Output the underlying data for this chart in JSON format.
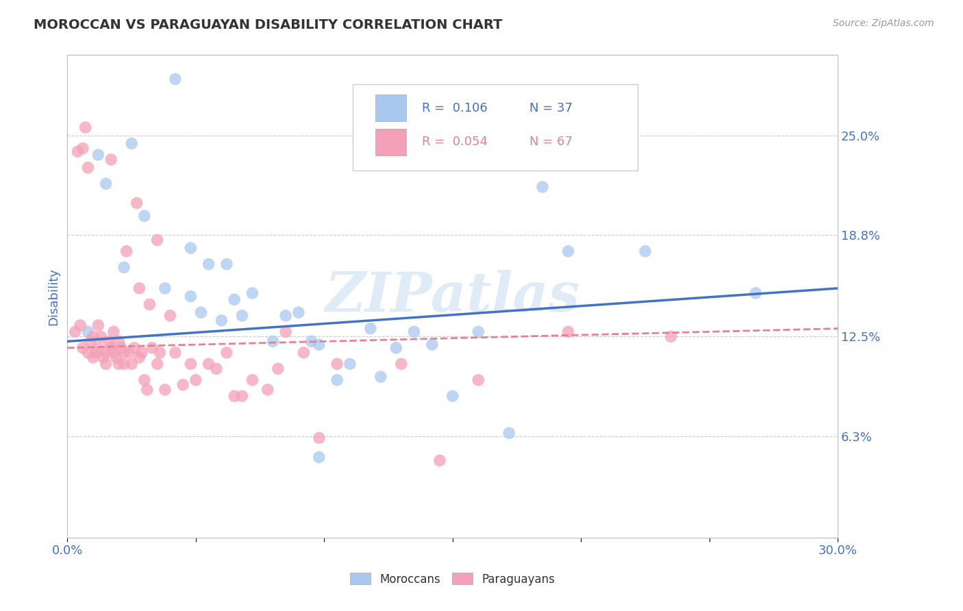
{
  "title": "MOROCCAN VS PARAGUAYAN DISABILITY CORRELATION CHART",
  "source": "Source: ZipAtlas.com",
  "ylabel": "Disability",
  "xlim": [
    0.0,
    0.3
  ],
  "ylim": [
    0.0,
    0.3
  ],
  "yticks": [
    0.063,
    0.125,
    0.188,
    0.25
  ],
  "ytick_labels": [
    "6.3%",
    "12.5%",
    "18.8%",
    "25.0%"
  ],
  "xtick_labels": [
    "0.0%",
    "30.0%"
  ],
  "watermark": "ZIPatlas",
  "legend_r_moroccan": "0.106",
  "legend_n_moroccan": "37",
  "legend_r_paraguayan": "0.054",
  "legend_n_paraguayan": "67",
  "moroccan_color": "#A8C8F0",
  "paraguayan_color": "#F4A0B8",
  "moroccan_line_color": "#4472C4",
  "paraguayan_line_color": "#E88090",
  "moroccan_x": [
    0.008,
    0.012,
    0.022,
    0.025,
    0.03,
    0.038,
    0.042,
    0.048,
    0.052,
    0.055,
    0.06,
    0.065,
    0.068,
    0.072,
    0.08,
    0.085,
    0.09,
    0.095,
    0.098,
    0.105,
    0.11,
    0.118,
    0.122,
    0.128,
    0.135,
    0.142,
    0.15,
    0.16,
    0.172,
    0.185,
    0.195,
    0.225,
    0.268,
    0.048,
    0.015,
    0.062,
    0.098
  ],
  "moroccan_y": [
    0.128,
    0.238,
    0.168,
    0.245,
    0.2,
    0.155,
    0.285,
    0.15,
    0.14,
    0.17,
    0.135,
    0.148,
    0.138,
    0.152,
    0.122,
    0.138,
    0.14,
    0.122,
    0.12,
    0.098,
    0.108,
    0.13,
    0.1,
    0.118,
    0.128,
    0.12,
    0.088,
    0.128,
    0.065,
    0.218,
    0.178,
    0.178,
    0.152,
    0.18,
    0.22,
    0.17,
    0.05
  ],
  "paraguayan_x": [
    0.003,
    0.004,
    0.005,
    0.006,
    0.006,
    0.007,
    0.008,
    0.008,
    0.009,
    0.01,
    0.01,
    0.011,
    0.012,
    0.012,
    0.013,
    0.014,
    0.015,
    0.015,
    0.016,
    0.017,
    0.017,
    0.018,
    0.018,
    0.019,
    0.02,
    0.02,
    0.021,
    0.022,
    0.022,
    0.023,
    0.024,
    0.025,
    0.026,
    0.027,
    0.028,
    0.028,
    0.029,
    0.03,
    0.031,
    0.032,
    0.033,
    0.035,
    0.035,
    0.036,
    0.038,
    0.04,
    0.042,
    0.045,
    0.048,
    0.05,
    0.055,
    0.058,
    0.062,
    0.065,
    0.068,
    0.072,
    0.078,
    0.082,
    0.085,
    0.092,
    0.098,
    0.105,
    0.13,
    0.145,
    0.16,
    0.195,
    0.235
  ],
  "paraguayan_y": [
    0.128,
    0.24,
    0.132,
    0.118,
    0.242,
    0.255,
    0.115,
    0.23,
    0.122,
    0.112,
    0.125,
    0.115,
    0.118,
    0.132,
    0.125,
    0.112,
    0.108,
    0.115,
    0.122,
    0.118,
    0.235,
    0.115,
    0.128,
    0.112,
    0.108,
    0.122,
    0.118,
    0.108,
    0.115,
    0.178,
    0.115,
    0.108,
    0.118,
    0.208,
    0.112,
    0.155,
    0.115,
    0.098,
    0.092,
    0.145,
    0.118,
    0.108,
    0.185,
    0.115,
    0.092,
    0.138,
    0.115,
    0.095,
    0.108,
    0.098,
    0.108,
    0.105,
    0.115,
    0.088,
    0.088,
    0.098,
    0.092,
    0.105,
    0.128,
    0.115,
    0.062,
    0.108,
    0.108,
    0.048,
    0.098,
    0.128,
    0.125
  ],
  "background_color": "#FFFFFF",
  "grid_color": "#CCCCCC",
  "title_color": "#333333",
  "axis_label_color": "#4472C4",
  "watermark_color": "#B8D4EE",
  "watermark_alpha": 0.45,
  "moroccan_line_intercept": 0.122,
  "moroccan_line_slope": 0.11,
  "paraguayan_line_intercept": 0.118,
  "paraguayan_line_slope": 0.04
}
